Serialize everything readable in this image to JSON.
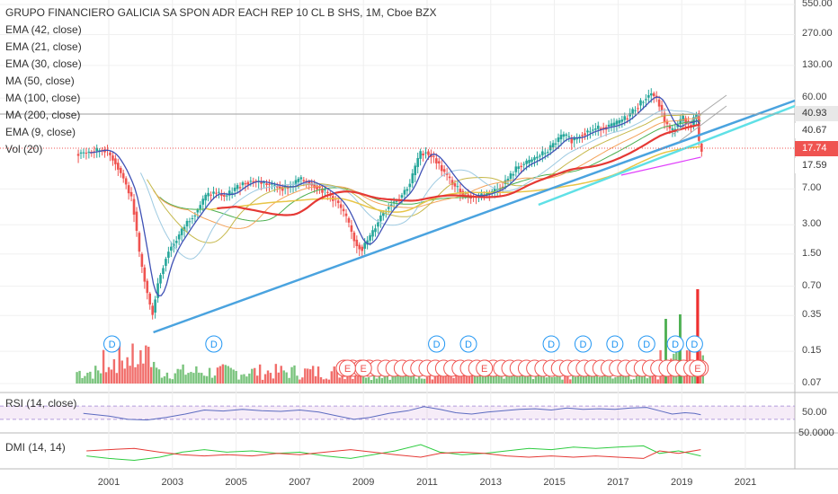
{
  "chart_data": {
    "type": "candlestick",
    "title": "GRUPO FINANCIERO GALICIA SA SPON ADR EACH REP 10 CL B SHS, 1M, Cboe BZX",
    "indicators": [
      "EMA (42, close)",
      "EMA (21, close)",
      "EMA (30, close)",
      "MA (50, close)",
      "MA (100, close)",
      "MA (200, close)",
      "EMA (9, close)",
      "Vol (20)"
    ],
    "price_axis": {
      "scale": "log",
      "tick_labels": [
        "550.00",
        "270.00",
        "130.00",
        "60.00",
        "7.00",
        "3.00",
        "1.50",
        "0.70",
        "0.35",
        "0.15",
        "0.07"
      ],
      "tick_values": [
        550,
        270,
        130,
        60,
        7,
        3,
        1.5,
        0.7,
        0.35,
        0.15,
        0.07
      ],
      "price_tags": [
        {
          "label": "40.93",
          "color": "#e8e8e8",
          "text_color": "#333333"
        },
        {
          "label": "40.67",
          "color": "#ffffff",
          "text_color": "#333333"
        },
        {
          "label": "17.74",
          "color": "#ef5350",
          "text_color": "#ffffff"
        },
        {
          "label": "17.59",
          "color": "#ffffff",
          "text_color": "#333333"
        }
      ]
    },
    "x_axis": {
      "tick_labels": [
        "2001",
        "2003",
        "2005",
        "2007",
        "2009",
        "2011",
        "2013",
        "2015",
        "2017",
        "2019",
        "2021"
      ],
      "tick_values": [
        2001,
        2003,
        2005,
        2007,
        2009,
        2011,
        2013,
        2015,
        2017,
        2019,
        2021
      ]
    },
    "price_series_approx": [
      [
        2000.0,
        16
      ],
      [
        2000.5,
        17
      ],
      [
        2000.9,
        18
      ],
      [
        2001.2,
        14
      ],
      [
        2001.5,
        9
      ],
      [
        2001.8,
        5
      ],
      [
        2002.0,
        1.5
      ],
      [
        2002.2,
        0.7
      ],
      [
        2002.4,
        0.35
      ],
      [
        2002.6,
        0.8
      ],
      [
        2002.9,
        1.6
      ],
      [
        2003.2,
        2.2
      ],
      [
        2003.5,
        3.2
      ],
      [
        2003.8,
        4.2
      ],
      [
        2004.1,
        6
      ],
      [
        2004.4,
        6.5
      ],
      [
        2004.7,
        5.8
      ],
      [
        2005.0,
        7
      ],
      [
        2005.3,
        8.2
      ],
      [
        2005.6,
        8.5
      ],
      [
        2005.9,
        8
      ],
      [
        2006.2,
        7.6
      ],
      [
        2006.5,
        7.2
      ],
      [
        2006.8,
        7.5
      ],
      [
        2007.0,
        8.8
      ],
      [
        2007.3,
        8.2
      ],
      [
        2007.6,
        7.3
      ],
      [
        2007.9,
        6.3
      ],
      [
        2008.2,
        5.2
      ],
      [
        2008.5,
        3.5
      ],
      [
        2008.8,
        1.9
      ],
      [
        2009.0,
        1.7
      ],
      [
        2009.3,
        2.4
      ],
      [
        2009.6,
        3.8
      ],
      [
        2009.9,
        5
      ],
      [
        2010.2,
        5.8
      ],
      [
        2010.5,
        8
      ],
      [
        2010.8,
        16
      ],
      [
        2011.0,
        17
      ],
      [
        2011.3,
        14
      ],
      [
        2011.6,
        10
      ],
      [
        2011.9,
        7.5
      ],
      [
        2012.2,
        6.2
      ],
      [
        2012.5,
        5.8
      ],
      [
        2012.8,
        6.2
      ],
      [
        2013.0,
        6.5
      ],
      [
        2013.3,
        7.2
      ],
      [
        2013.6,
        9
      ],
      [
        2013.9,
        12
      ],
      [
        2014.2,
        13
      ],
      [
        2014.5,
        15
      ],
      [
        2014.8,
        17
      ],
      [
        2015.0,
        20
      ],
      [
        2015.3,
        25
      ],
      [
        2015.6,
        22
      ],
      [
        2015.9,
        26
      ],
      [
        2016.2,
        28
      ],
      [
        2016.5,
        30
      ],
      [
        2016.8,
        31
      ],
      [
        2017.0,
        33
      ],
      [
        2017.3,
        38
      ],
      [
        2017.6,
        48
      ],
      [
        2017.9,
        60
      ],
      [
        2018.1,
        68
      ],
      [
        2018.3,
        55
      ],
      [
        2018.5,
        35
      ],
      [
        2018.7,
        27
      ],
      [
        2018.9,
        32
      ],
      [
        2019.1,
        38
      ],
      [
        2019.3,
        30
      ],
      [
        2019.5,
        42
      ],
      [
        2019.6,
        17.74
      ]
    ],
    "volume_note": "Vol (20) bars along the bottom of the main pane",
    "event_markers": {
      "dividend_label": "D",
      "earnings_label": "E",
      "dividends": [
        2001.1,
        2004.3,
        2011.3,
        2012.3,
        2014.9,
        2015.9,
        2016.9,
        2017.9,
        2018.8,
        2019.4
      ],
      "earnings": [
        2008.5,
        2009.0,
        2012.8,
        2019.5
      ]
    },
    "rsi": {
      "label": "RSI (14, close)",
      "axis_label": "50.00",
      "band_upper": 70,
      "band_lower": 30,
      "values_approx": [
        [
          2000.2,
          48
        ],
        [
          2001.0,
          40
        ],
        [
          2001.6,
          30
        ],
        [
          2002.2,
          28
        ],
        [
          2002.8,
          36
        ],
        [
          2003.4,
          46
        ],
        [
          2004.0,
          58
        ],
        [
          2004.6,
          55
        ],
        [
          2005.2,
          60
        ],
        [
          2005.8,
          56
        ],
        [
          2006.4,
          54
        ],
        [
          2007.0,
          58
        ],
        [
          2007.6,
          52
        ],
        [
          2008.2,
          40
        ],
        [
          2008.7,
          30
        ],
        [
          2009.2,
          36
        ],
        [
          2009.8,
          48
        ],
        [
          2010.4,
          56
        ],
        [
          2010.9,
          68
        ],
        [
          2011.4,
          60
        ],
        [
          2011.9,
          50
        ],
        [
          2012.4,
          46
        ],
        [
          2012.9,
          52
        ],
        [
          2013.4,
          56
        ],
        [
          2013.9,
          60
        ],
        [
          2014.4,
          62
        ],
        [
          2014.9,
          58
        ],
        [
          2015.4,
          64
        ],
        [
          2015.9,
          60
        ],
        [
          2016.4,
          62
        ],
        [
          2016.9,
          60
        ],
        [
          2017.4,
          64
        ],
        [
          2017.9,
          66
        ],
        [
          2018.3,
          56
        ],
        [
          2018.7,
          46
        ],
        [
          2019.1,
          50
        ],
        [
          2019.4,
          48
        ],
        [
          2019.6,
          44
        ]
      ]
    },
    "dmi": {
      "label": "DMI (14, 14)",
      "axis_label": "50.0000",
      "plus_di_approx": [
        [
          2000.3,
          12
        ],
        [
          2001.0,
          8
        ],
        [
          2001.8,
          5
        ],
        [
          2002.6,
          10
        ],
        [
          2003.3,
          18
        ],
        [
          2004.0,
          22
        ],
        [
          2004.7,
          18
        ],
        [
          2005.5,
          20
        ],
        [
          2006.3,
          16
        ],
        [
          2007.0,
          18
        ],
        [
          2007.8,
          12
        ],
        [
          2008.6,
          8
        ],
        [
          2009.3,
          14
        ],
        [
          2010.0,
          20
        ],
        [
          2010.8,
          30
        ],
        [
          2011.4,
          18
        ],
        [
          2012.1,
          14
        ],
        [
          2012.8,
          16
        ],
        [
          2013.5,
          20
        ],
        [
          2014.2,
          24
        ],
        [
          2014.9,
          22
        ],
        [
          2015.6,
          26
        ],
        [
          2016.3,
          24
        ],
        [
          2017.0,
          26
        ],
        [
          2017.8,
          28
        ],
        [
          2018.3,
          16
        ],
        [
          2018.9,
          20
        ],
        [
          2019.6,
          12
        ]
      ],
      "minus_di_approx": [
        [
          2000.3,
          20
        ],
        [
          2001.0,
          22
        ],
        [
          2001.8,
          24
        ],
        [
          2002.6,
          18
        ],
        [
          2003.3,
          14
        ],
        [
          2004.0,
          12
        ],
        [
          2004.7,
          14
        ],
        [
          2005.5,
          12
        ],
        [
          2006.3,
          16
        ],
        [
          2007.0,
          14
        ],
        [
          2007.8,
          18
        ],
        [
          2008.6,
          22
        ],
        [
          2009.3,
          18
        ],
        [
          2010.0,
          14
        ],
        [
          2010.8,
          10
        ],
        [
          2011.4,
          16
        ],
        [
          2012.1,
          18
        ],
        [
          2012.8,
          16
        ],
        [
          2013.5,
          12
        ],
        [
          2014.2,
          10
        ],
        [
          2014.9,
          12
        ],
        [
          2015.6,
          10
        ],
        [
          2016.3,
          12
        ],
        [
          2017.0,
          10
        ],
        [
          2017.8,
          8
        ],
        [
          2018.3,
          20
        ],
        [
          2018.9,
          16
        ],
        [
          2019.6,
          22
        ]
      ]
    }
  }
}
